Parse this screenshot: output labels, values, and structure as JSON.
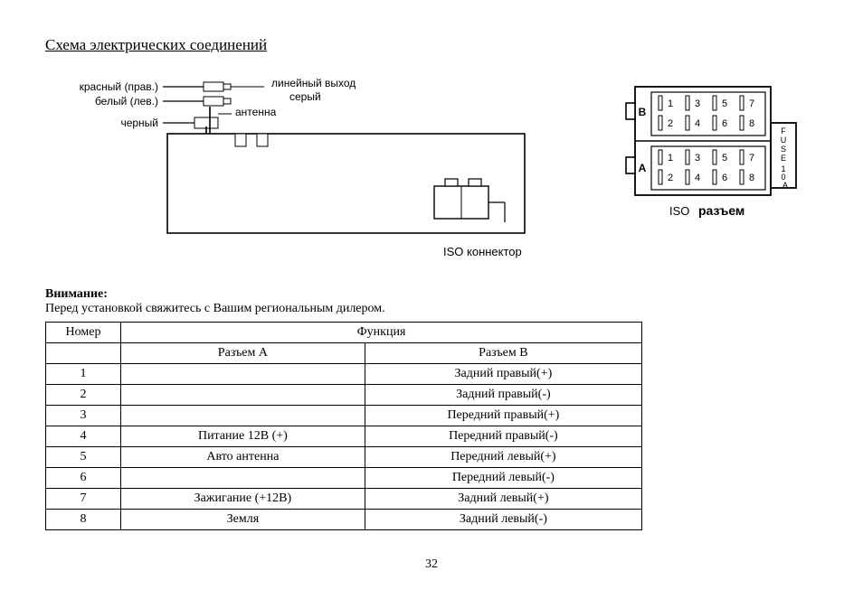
{
  "title": "Схема электрических соединений",
  "pageNumber": "32",
  "wiring": {
    "redRight": "красный (прав.)",
    "whiteLeft": "белый (лев.)",
    "black": "черный",
    "lineOut": "линейный выход",
    "gray": "серый",
    "antenna": "антенна",
    "isoConnector": "ISO  коннектор",
    "colors": {
      "box": "#000000",
      "fill": "#ffffff",
      "rcaGold": "#ffffff",
      "line": "#000000"
    }
  },
  "isoBlock": {
    "rowB": "B",
    "rowA": "A",
    "pins": [
      "1",
      "2",
      "3",
      "4",
      "5",
      "6",
      "7",
      "8"
    ],
    "fuse": "FUSE 10 A",
    "isoLabel": "ISO",
    "razem": "разъем"
  },
  "attention": "Внимание:",
  "beforeInstall": "Перед установкой свяжитесь с Вашим региональным дилером.",
  "table": {
    "hdrNumber": "Номер",
    "hdrFunction": "Функция",
    "subA": "Разъем A",
    "subB": "Разъем B",
    "rows": [
      {
        "n": "1",
        "a": "",
        "b": "Задний правый(+)"
      },
      {
        "n": "2",
        "a": "",
        "b": "Задний правый(-)"
      },
      {
        "n": "3",
        "a": "",
        "b": "Передний правый(+)"
      },
      {
        "n": "4",
        "a": "Питание 12В (+)",
        "b": "Передний правый(-)"
      },
      {
        "n": "5",
        "a": "Авто антенна",
        "b": "Передний левый(+)"
      },
      {
        "n": "6",
        "a": "",
        "b": "Передний левый(-)"
      },
      {
        "n": "7",
        "a": "Зажигание (+12В)",
        "b": "Задний левый(+)"
      },
      {
        "n": "8",
        "a": "Земля",
        "b": "Задний левый(-)"
      }
    ]
  }
}
